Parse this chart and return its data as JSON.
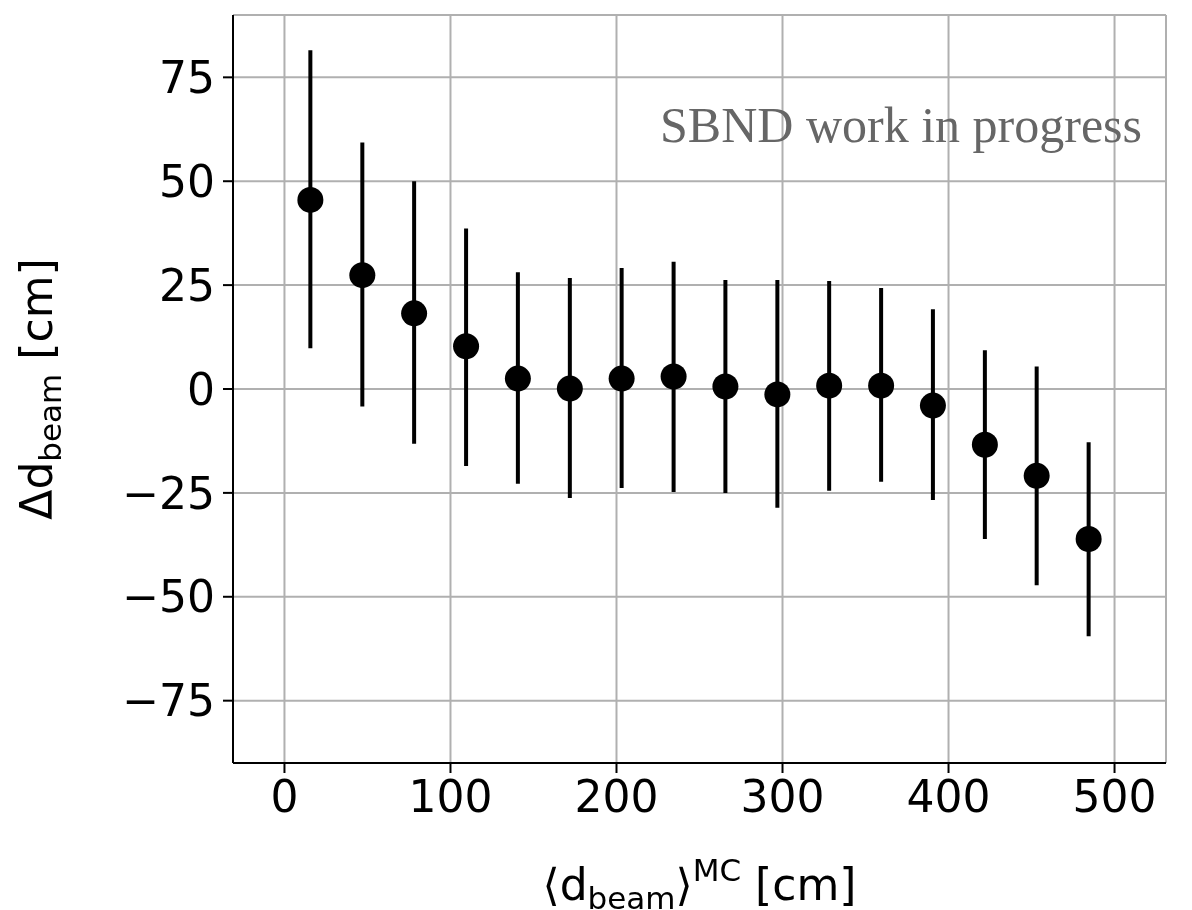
{
  "chart_data": {
    "type": "scatter",
    "xlabel": "⟨d$_{beam}$⟩$^{MC}$ [cm]",
    "ylabel": "Δd$_{beam}$ [cm]",
    "annotations": [
      "SBND work in progress"
    ],
    "x": [
      15.6,
      46.9,
      78.1,
      109.4,
      140.6,
      171.9,
      203.1,
      234.4,
      265.6,
      296.9,
      328.1,
      359.4,
      390.6,
      421.9,
      453.1,
      484.4
    ],
    "series": [
      {
        "color": "#000000",
        "values": [
          45.5,
          27.4,
          18.2,
          10.3,
          2.5,
          0.1,
          2.5,
          3.0,
          0.6,
          -1.3,
          0.8,
          0.8,
          -4.0,
          -13.4,
          -20.9,
          -36.1
        ],
        "errors": [
          [
            9.8,
            81.5
          ],
          [
            -4.2,
            59.3
          ],
          [
            -13.2,
            50.0
          ],
          [
            -18.5,
            38.6
          ],
          [
            -22.8,
            28.1
          ],
          [
            -26.2,
            26.7
          ],
          [
            -23.8,
            29.1
          ],
          [
            -24.8,
            30.6
          ],
          [
            -25.0,
            26.2
          ],
          [
            -28.6,
            26.2
          ],
          [
            -24.5,
            26.0
          ],
          [
            -22.3,
            24.3
          ],
          [
            -26.7,
            19.2
          ],
          [
            -36.1,
            9.3
          ],
          [
            -47.2,
            5.4
          ],
          [
            -59.5,
            -12.8
          ]
        ]
      }
    ],
    "xlim": [
      -31,
      531
    ],
    "xticks": [
      0,
      100,
      200,
      300,
      400,
      500
    ],
    "ylim": [
      -90,
      90
    ],
    "yticks": [
      -75,
      -50,
      -25,
      0,
      25,
      50,
      75
    ],
    "grid": true,
    "marker": "circle"
  }
}
